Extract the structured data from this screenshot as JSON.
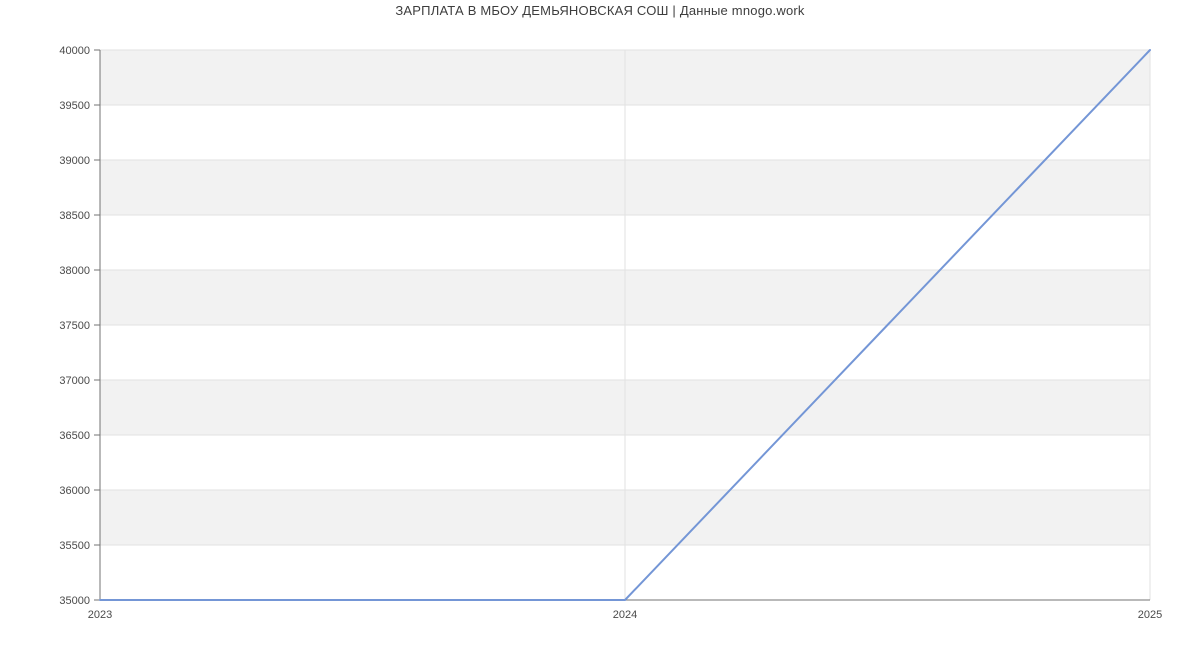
{
  "page": {
    "title": "ЗАРПЛАТА В МБОУ ДЕМЬЯНОВСКАЯ СОШ | Данные mnogo.work"
  },
  "colors": {
    "background": "#ffffff",
    "line": "#7496d6",
    "band": "#f2f2f2",
    "grid": "#e2e2e2",
    "axis": "#737373",
    "tick_text": "#4a4a4a",
    "title_text": "#3d3d3d"
  },
  "chart_data": {
    "type": "line",
    "title": "ЗАРПЛАТА В МБОУ ДЕМЬЯНОВСКАЯ СОШ | Данные mnogo.work",
    "x": [
      2023,
      2024,
      2025
    ],
    "xtick_labels": [
      "2023",
      "2024",
      "2025"
    ],
    "series": [
      {
        "name": "Зарплата",
        "values": [
          35000,
          35000,
          40000
        ],
        "color": "#7496d6"
      }
    ],
    "xlabel": "",
    "ylabel": "",
    "xlim": [
      2023,
      2025
    ],
    "ylim": [
      35000,
      40000
    ],
    "ytick_step": 500,
    "yticks": [
      35000,
      35500,
      36000,
      36500,
      37000,
      37500,
      38000,
      38500,
      39000,
      39500,
      40000
    ],
    "ytick_labels": [
      "35000",
      "35500",
      "36000",
      "36500",
      "37000",
      "37500",
      "38000",
      "38500",
      "39000",
      "39500",
      "40000"
    ],
    "grid": true,
    "striped_background": true,
    "legend_position": "none",
    "markers": false
  }
}
